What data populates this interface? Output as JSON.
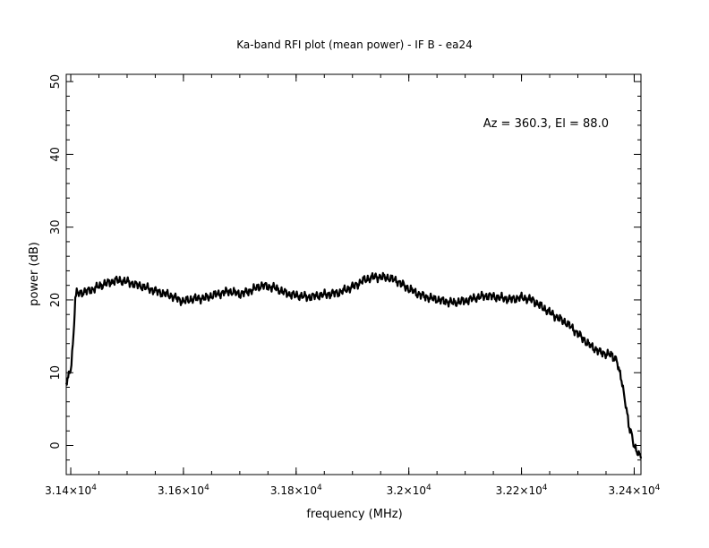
{
  "chart_data": {
    "type": "line",
    "title": "Ka-band RFI plot (mean power) - IF B - ea24",
    "xlabel": "frequency (MHz)",
    "ylabel": "power (dB)",
    "annotation": "Az = 360.3, El = 88.0",
    "xlim": [
      31392,
      32412
    ],
    "ylim": [
      -4,
      51
    ],
    "grid": false,
    "line_color": "#000000",
    "x_ticks": [
      {
        "value": 31400,
        "mantissa": "3.14",
        "exponent": "4"
      },
      {
        "value": 31600,
        "mantissa": "3.16",
        "exponent": "4"
      },
      {
        "value": 31800,
        "mantissa": "3.18",
        "exponent": "4"
      },
      {
        "value": 32000,
        "mantissa": "3.2",
        "exponent": "4"
      },
      {
        "value": 32200,
        "mantissa": "3.22",
        "exponent": "4"
      },
      {
        "value": 32400,
        "mantissa": "3.24",
        "exponent": "4"
      }
    ],
    "y_ticks": [
      "0",
      "10",
      "20",
      "30",
      "40",
      "50"
    ],
    "series": [
      {
        "x": [
          31392,
          31400,
          31405,
          31408,
          31412,
          31420,
          31440,
          31460,
          31480,
          31500,
          31520,
          31540,
          31560,
          31580,
          31600,
          31620,
          31640,
          31660,
          31680,
          31700,
          31720,
          31740,
          31760,
          31780,
          31800,
          31820,
          31840,
          31860,
          31880,
          31900,
          31920,
          31940,
          31960,
          31980,
          32000,
          32020,
          32040,
          32060,
          32080,
          32100,
          32120,
          32140,
          32160,
          32180,
          32200,
          32220,
          32240,
          32260,
          32280,
          32300,
          32320,
          32340,
          32360,
          32370,
          32380,
          32390,
          32400,
          32408,
          32412
        ],
        "y": [
          8.5,
          10.5,
          15,
          20.5,
          21,
          21,
          21.5,
          22.2,
          22.7,
          22.5,
          22,
          21.5,
          21,
          20.5,
          19.8,
          20.2,
          20.3,
          20.8,
          21.2,
          20.8,
          21.3,
          22.0,
          21.7,
          21.0,
          20.6,
          20.4,
          20.6,
          20.8,
          21.1,
          21.8,
          22.7,
          23.2,
          23.1,
          22.6,
          21.5,
          20.7,
          20.2,
          19.9,
          19.6,
          19.9,
          20.3,
          20.6,
          20.3,
          20.1,
          20.3,
          20.0,
          18.8,
          17.8,
          16.8,
          15.4,
          13.8,
          12.8,
          12.4,
          11.5,
          8,
          3,
          0,
          -1.2,
          -1.8
        ]
      }
    ]
  }
}
